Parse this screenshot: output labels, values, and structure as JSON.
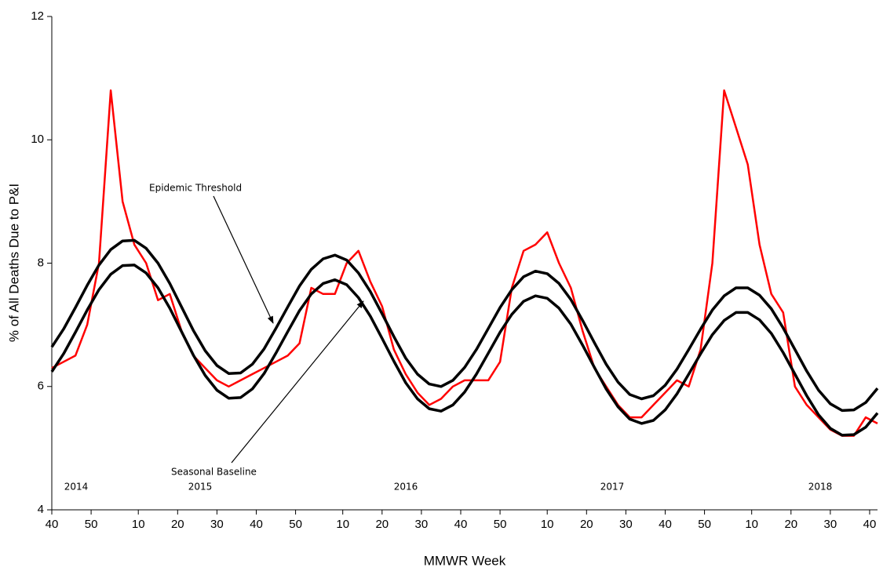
{
  "chart_data": {
    "type": "line",
    "x_label": "MMWR Week",
    "y_label": "% of All Deaths Due to P&I",
    "year_labels": [
      "2014",
      "2015",
      "2016",
      "2017",
      "2018"
    ],
    "x": [
      0,
      3,
      6,
      9,
      12,
      15,
      18,
      21,
      24,
      27,
      30,
      33,
      36,
      39,
      42,
      45,
      48,
      51,
      54,
      57,
      60,
      63,
      66,
      69,
      72,
      75,
      78,
      81,
      84,
      87,
      90,
      93,
      96,
      99,
      102,
      105,
      108,
      111,
      114,
      117,
      120,
      123,
      126,
      129,
      132,
      135,
      138,
      141,
      144,
      147,
      150,
      153,
      156,
      159,
      162,
      165,
      168,
      171,
      174,
      177,
      180,
      183,
      186,
      189,
      192,
      195,
      198,
      201,
      204,
      207,
      210
    ],
    "series": [
      {
        "color": "#ff0000",
        "width": 2.5,
        "values": [
          6.3,
          6.4,
          6.5,
          7.0,
          8.0,
          10.8,
          9.0,
          8.3,
          8.0,
          7.4,
          7.5,
          6.9,
          6.5,
          6.3,
          6.1,
          6.0,
          6.1,
          6.2,
          6.3,
          6.4,
          6.5,
          6.7,
          7.6,
          7.5,
          7.5,
          8.0,
          8.2,
          7.7,
          7.3,
          6.6,
          6.2,
          5.9,
          5.7,
          5.8,
          6.0,
          6.1,
          6.1,
          6.1,
          6.4,
          7.6,
          8.2,
          8.3,
          8.5,
          8.0,
          7.6,
          6.9,
          6.3,
          6.0,
          5.7,
          5.5,
          5.5,
          5.7,
          5.9,
          6.1,
          6.0,
          6.6,
          8.0,
          10.8,
          10.2,
          9.6,
          8.3,
          7.5,
          7.2,
          6.0,
          5.7,
          5.5,
          5.3,
          5.2,
          5.2,
          5.5,
          5.4
        ]
      },
      {
        "name": "Epidemic Threshold",
        "color": "#000000",
        "width": 3.5,
        "values": [
          6.64,
          6.93,
          7.28,
          7.64,
          7.97,
          8.22,
          8.36,
          8.37,
          8.24,
          8.0,
          7.67,
          7.29,
          6.91,
          6.58,
          6.34,
          6.21,
          6.22,
          6.36,
          6.61,
          6.94,
          7.29,
          7.63,
          7.9,
          8.07,
          8.13,
          8.05,
          7.84,
          7.54,
          7.18,
          6.81,
          6.46,
          6.2,
          6.04,
          6.0,
          6.1,
          6.31,
          6.6,
          6.94,
          7.28,
          7.57,
          7.78,
          7.87,
          7.83,
          7.67,
          7.41,
          7.07,
          6.71,
          6.36,
          6.07,
          5.87,
          5.8,
          5.85,
          6.02,
          6.28,
          6.6,
          6.93,
          7.24,
          7.47,
          7.6,
          7.6,
          7.48,
          7.26,
          6.95,
          6.6,
          6.25,
          5.94,
          5.72,
          5.61,
          5.62,
          5.74,
          5.97
        ]
      },
      {
        "name": "Seasonal Baseline",
        "color": "#000000",
        "width": 3.5,
        "values": [
          6.24,
          6.53,
          6.88,
          7.24,
          7.57,
          7.82,
          7.96,
          7.97,
          7.84,
          7.6,
          7.27,
          6.89,
          6.51,
          6.18,
          5.94,
          5.81,
          5.82,
          5.96,
          6.21,
          6.54,
          6.89,
          7.23,
          7.5,
          7.67,
          7.73,
          7.65,
          7.44,
          7.14,
          6.78,
          6.41,
          6.06,
          5.8,
          5.64,
          5.6,
          5.7,
          5.91,
          6.2,
          6.54,
          6.88,
          7.17,
          7.38,
          7.47,
          7.43,
          7.27,
          7.01,
          6.67,
          6.31,
          5.96,
          5.67,
          5.47,
          5.4,
          5.45,
          5.62,
          5.88,
          6.2,
          6.53,
          6.84,
          7.07,
          7.2,
          7.2,
          7.08,
          6.86,
          6.55,
          6.2,
          5.85,
          5.54,
          5.32,
          5.21,
          5.22,
          5.34,
          5.57
        ]
      }
    ],
    "xlim": [
      0,
      210
    ],
    "xticks": [
      {
        "value": 0,
        "label": "40"
      },
      {
        "value": 10,
        "label": "50"
      },
      {
        "value": 22,
        "label": "10"
      },
      {
        "value": 32,
        "label": "20"
      },
      {
        "value": 42,
        "label": "30"
      },
      {
        "value": 52,
        "label": "40"
      },
      {
        "value": 62,
        "label": "50"
      },
      {
        "value": 74,
        "label": "10"
      },
      {
        "value": 84,
        "label": "20"
      },
      {
        "value": 94,
        "label": "30"
      },
      {
        "value": 104,
        "label": "40"
      },
      {
        "value": 114,
        "label": "50"
      },
      {
        "value": 126,
        "label": "10"
      },
      {
        "value": 136,
        "label": "20"
      },
      {
        "value": 146,
        "label": "30"
      },
      {
        "value": 156,
        "label": "40"
      },
      {
        "value": 166,
        "label": "50"
      },
      {
        "value": 178,
        "label": "10"
      },
      {
        "value": 188,
        "label": "20"
      },
      {
        "value": 198,
        "label": "30"
      },
      {
        "value": 208,
        "label": "40"
      }
    ],
    "ylim": [
      4,
      12
    ],
    "yticks": [
      4,
      6,
      8,
      10,
      12
    ],
    "grid": false
  }
}
